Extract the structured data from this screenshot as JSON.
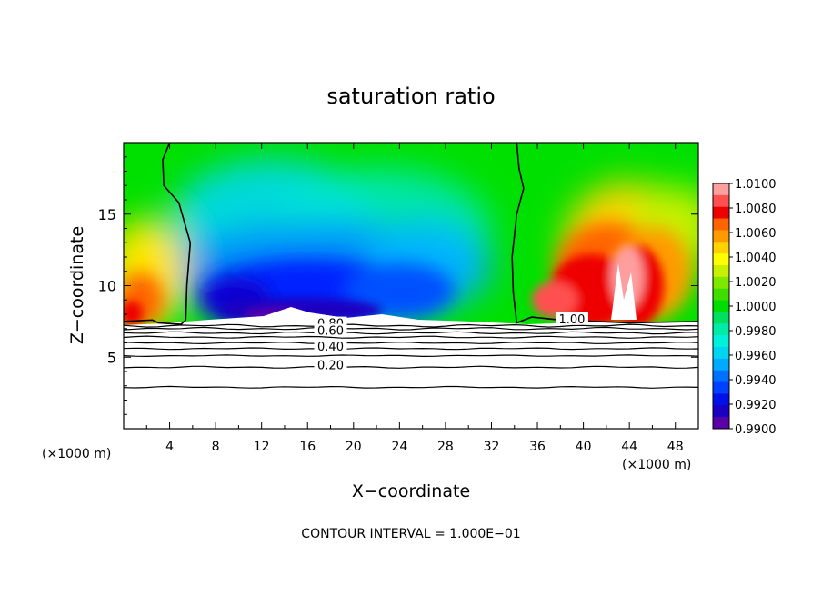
{
  "chart_data": {
    "type": "heatmap",
    "title": "saturation ratio",
    "xlabel": "X−coordinate",
    "ylabel": "Z−coordinate",
    "x_unit_left": "(×1000 m)",
    "x_unit_right": "(×1000 m)",
    "footer": "CONTOUR INTERVAL = 1.000E−01",
    "xlim": [
      0,
      50
    ],
    "ylim": [
      0,
      20
    ],
    "x_ticks": [
      4,
      8,
      12,
      16,
      20,
      24,
      28,
      32,
      36,
      40,
      44,
      48
    ],
    "x_tick_labels": [
      "4",
      "8",
      "12",
      "16",
      "20",
      "24",
      "28",
      "32",
      "36",
      "40",
      "44",
      "48"
    ],
    "y_ticks": [
      5,
      10,
      15
    ],
    "y_tick_labels": [
      "5",
      "10",
      "15"
    ],
    "colorbar": {
      "ticks": [
        "1.0100",
        "1.0080",
        "1.0060",
        "1.0040",
        "1.0020",
        "1.0000",
        "0.9980",
        "0.9960",
        "0.9940",
        "0.9920",
        "0.9900"
      ],
      "colors": [
        "#ff9e9e",
        "#ff5050",
        "#ee0000",
        "#ff6400",
        "#ff9a00",
        "#ffd200",
        "#ffff00",
        "#c8f000",
        "#7ee800",
        "#3ede00",
        "#00dd00",
        "#00e060",
        "#00eba8",
        "#00f0dc",
        "#00d4f0",
        "#00aaff",
        "#0070ff",
        "#0040ff",
        "#0010e8",
        "#1a00c0",
        "#5a00a8"
      ]
    },
    "contours": [
      {
        "label": "1.00",
        "x_label": 39,
        "z_label": 7.5
      },
      {
        "label": "0.80",
        "x_label": 18,
        "z_label": 7.2
      },
      {
        "label": "0.60",
        "x_label": 18,
        "z_label": 6.7
      },
      {
        "label": "0.40",
        "x_label": 18,
        "z_label": 5.6
      },
      {
        "label": "0.20",
        "x_label": 18,
        "z_label": 4.3
      }
    ]
  }
}
